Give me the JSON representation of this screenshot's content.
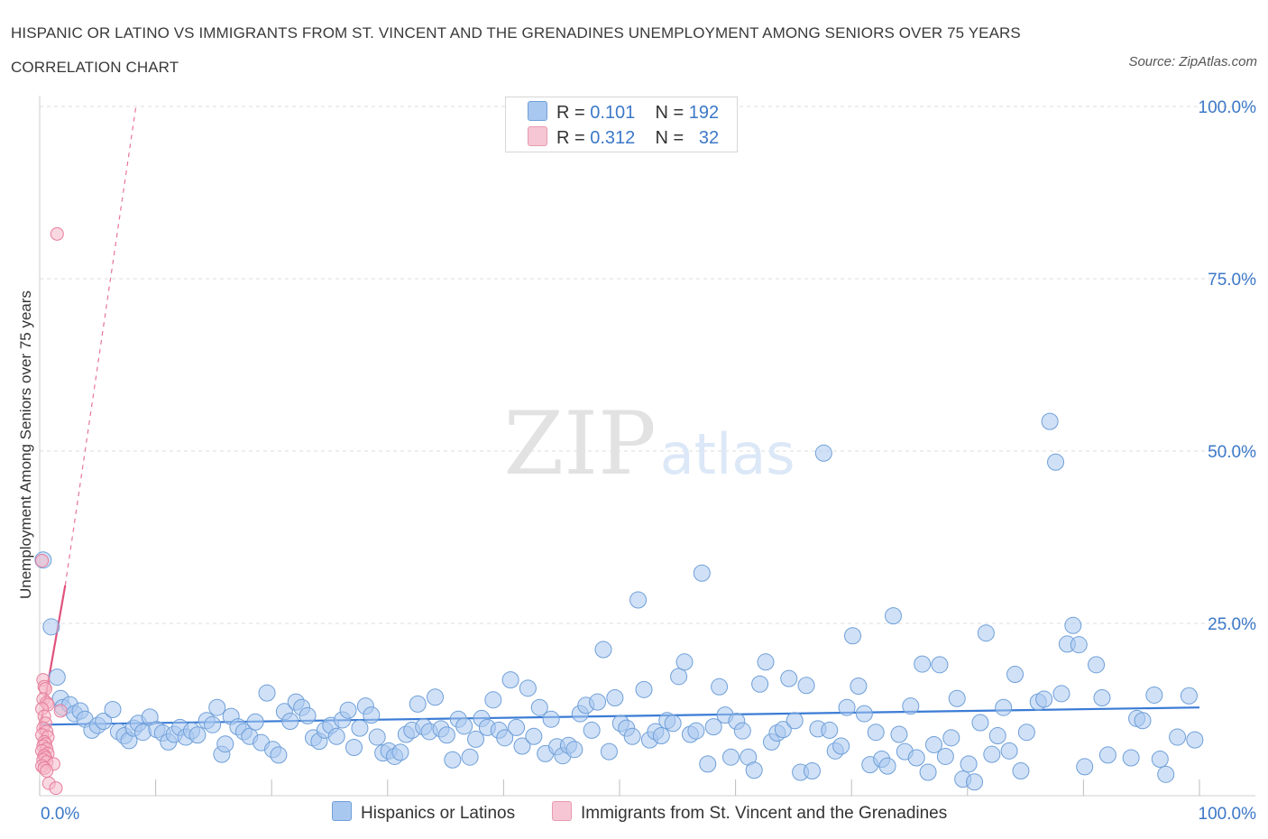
{
  "chart_data": {
    "type": "scatter",
    "title": "HISPANIC OR LATINO VS IMMIGRANTS FROM ST. VINCENT AND THE GRENADINES UNEMPLOYMENT AMONG SENIORS OVER 75 YEARS CORRELATION CHART",
    "source": "Source: ZipAtlas.com",
    "ylabel": "Unemployment Among Seniors over 75 years",
    "xlim": [
      0,
      100
    ],
    "ylim": [
      0,
      100
    ],
    "x_tick_labels": [
      "0.0%",
      "100.0%"
    ],
    "y_tick_labels": [
      "25.0%",
      "50.0%",
      "75.0%",
      "100.0%"
    ],
    "y_ticks": [
      25,
      50,
      75,
      100
    ],
    "grid": "horizontal dashed",
    "watermark": "ZIPatlas",
    "stats": [
      {
        "r_label": "R =",
        "r": "0.101",
        "n_label": "N =",
        "n": "192",
        "color": "#a9c8f0"
      },
      {
        "r_label": "R =",
        "r": "0.312",
        "n_label": "N =",
        "n": "32",
        "color": "#f6b8c8"
      }
    ],
    "series": [
      {
        "name": "Hispanics or Latinos",
        "color": "#a9c8f0",
        "stroke": "#6f9fd8",
        "trend": {
          "x": [
            0,
            100
          ],
          "y": [
            10.3,
            12.8
          ],
          "color": "#3a7bd5"
        },
        "points": [
          [
            0.3,
            34.2
          ],
          [
            1.0,
            24.5
          ],
          [
            1.5,
            17.2
          ],
          [
            1.8,
            14.1
          ],
          [
            2.0,
            12.8
          ],
          [
            2.6,
            13.2
          ],
          [
            3.0,
            11.9
          ],
          [
            3.5,
            12.3
          ],
          [
            3.9,
            11.1
          ],
          [
            4.5,
            9.5
          ],
          [
            5.0,
            10.2
          ],
          [
            5.5,
            10.8
          ],
          [
            6.3,
            12.5
          ],
          [
            6.8,
            9.3
          ],
          [
            7.3,
            8.7
          ],
          [
            7.7,
            8.0
          ],
          [
            8.1,
            9.8
          ],
          [
            8.5,
            10.5
          ],
          [
            8.9,
            9.2
          ],
          [
            9.5,
            11.4
          ],
          [
            10.1,
            9.6
          ],
          [
            10.6,
            9.1
          ],
          [
            11.1,
            7.8
          ],
          [
            11.6,
            8.9
          ],
          [
            12.1,
            9.9
          ],
          [
            12.6,
            8.5
          ],
          [
            13.1,
            9.4
          ],
          [
            13.6,
            8.8
          ],
          [
            14.4,
            10.9
          ],
          [
            14.9,
            10.3
          ],
          [
            15.3,
            12.8
          ],
          [
            15.7,
            6.0
          ],
          [
            16.0,
            7.5
          ],
          [
            16.5,
            11.5
          ],
          [
            17.1,
            10.0
          ],
          [
            17.6,
            9.3
          ],
          [
            18.1,
            8.6
          ],
          [
            18.6,
            10.7
          ],
          [
            19.1,
            7.7
          ],
          [
            19.6,
            14.9
          ],
          [
            20.1,
            6.7
          ],
          [
            20.6,
            5.9
          ],
          [
            21.1,
            12.2
          ],
          [
            21.6,
            10.8
          ],
          [
            22.1,
            13.6
          ],
          [
            22.6,
            12.8
          ],
          [
            23.1,
            11.6
          ],
          [
            23.6,
            8.4
          ],
          [
            24.1,
            7.9
          ],
          [
            24.6,
            9.5
          ],
          [
            25.1,
            10.2
          ],
          [
            25.6,
            8.6
          ],
          [
            26.1,
            11.0
          ],
          [
            26.6,
            12.4
          ],
          [
            27.1,
            7.0
          ],
          [
            27.6,
            9.8
          ],
          [
            28.1,
            13.0
          ],
          [
            28.6,
            11.7
          ],
          [
            29.1,
            8.5
          ],
          [
            29.6,
            6.2
          ],
          [
            30.1,
            6.5
          ],
          [
            30.6,
            5.7
          ],
          [
            31.1,
            6.3
          ],
          [
            31.6,
            8.9
          ],
          [
            32.1,
            9.5
          ],
          [
            32.6,
            13.3
          ],
          [
            33.1,
            10.0
          ],
          [
            33.6,
            9.3
          ],
          [
            34.1,
            14.3
          ],
          [
            34.6,
            9.7
          ],
          [
            35.1,
            8.8
          ],
          [
            35.6,
            5.2
          ],
          [
            36.1,
            11.1
          ],
          [
            36.6,
            10.1
          ],
          [
            37.1,
            5.6
          ],
          [
            37.6,
            8.2
          ],
          [
            38.1,
            11.2
          ],
          [
            38.6,
            9.9
          ],
          [
            39.1,
            13.9
          ],
          [
            39.6,
            9.5
          ],
          [
            40.1,
            8.4
          ],
          [
            40.6,
            16.8
          ],
          [
            41.1,
            9.9
          ],
          [
            41.6,
            7.2
          ],
          [
            42.1,
            15.6
          ],
          [
            42.6,
            8.6
          ],
          [
            43.1,
            12.8
          ],
          [
            43.6,
            6.1
          ],
          [
            44.1,
            11.1
          ],
          [
            44.6,
            7.1
          ],
          [
            45.1,
            5.8
          ],
          [
            45.6,
            7.3
          ],
          [
            46.1,
            6.7
          ],
          [
            46.6,
            11.9
          ],
          [
            47.1,
            13.1
          ],
          [
            47.6,
            9.5
          ],
          [
            48.1,
            13.6
          ],
          [
            48.6,
            21.2
          ],
          [
            49.1,
            6.4
          ],
          [
            49.6,
            14.2
          ],
          [
            50.1,
            10.5
          ],
          [
            50.6,
            9.8
          ],
          [
            51.1,
            8.6
          ],
          [
            51.6,
            28.4
          ],
          [
            52.1,
            15.4
          ],
          [
            52.6,
            8.1
          ],
          [
            53.1,
            9.3
          ],
          [
            53.6,
            8.7
          ],
          [
            54.1,
            10.9
          ],
          [
            54.6,
            10.5
          ],
          [
            55.1,
            17.3
          ],
          [
            55.6,
            19.4
          ],
          [
            56.1,
            8.9
          ],
          [
            56.6,
            9.4
          ],
          [
            57.1,
            32.3
          ],
          [
            57.6,
            4.6
          ],
          [
            58.1,
            10.0
          ],
          [
            58.6,
            15.8
          ],
          [
            59.1,
            11.7
          ],
          [
            59.6,
            5.6
          ],
          [
            60.1,
            10.8
          ],
          [
            60.6,
            9.4
          ],
          [
            61.1,
            5.6
          ],
          [
            61.6,
            3.7
          ],
          [
            62.1,
            16.2
          ],
          [
            62.6,
            19.4
          ],
          [
            63.1,
            7.8
          ],
          [
            63.6,
            9.1
          ],
          [
            64.1,
            9.6
          ],
          [
            64.6,
            17.0
          ],
          [
            65.1,
            10.9
          ],
          [
            65.6,
            3.4
          ],
          [
            66.1,
            16.0
          ],
          [
            66.6,
            3.6
          ],
          [
            67.1,
            9.7
          ],
          [
            67.6,
            49.7
          ],
          [
            68.1,
            9.5
          ],
          [
            68.6,
            6.5
          ],
          [
            69.1,
            7.2
          ],
          [
            69.6,
            12.8
          ],
          [
            70.1,
            23.2
          ],
          [
            70.6,
            15.9
          ],
          [
            71.1,
            11.9
          ],
          [
            71.6,
            4.5
          ],
          [
            72.1,
            9.2
          ],
          [
            72.6,
            5.3
          ],
          [
            73.1,
            4.3
          ],
          [
            73.6,
            26.1
          ],
          [
            74.1,
            8.9
          ],
          [
            74.6,
            6.4
          ],
          [
            75.1,
            13.0
          ],
          [
            75.6,
            5.5
          ],
          [
            76.1,
            19.1
          ],
          [
            76.6,
            3.4
          ],
          [
            77.1,
            7.4
          ],
          [
            77.6,
            19.0
          ],
          [
            78.1,
            5.7
          ],
          [
            78.6,
            8.4
          ],
          [
            79.1,
            14.1
          ],
          [
            79.6,
            2.4
          ],
          [
            80.1,
            4.6
          ],
          [
            80.6,
            2.0
          ],
          [
            81.1,
            10.6
          ],
          [
            81.6,
            23.6
          ],
          [
            82.1,
            6.0
          ],
          [
            82.6,
            8.7
          ],
          [
            83.1,
            12.8
          ],
          [
            83.6,
            6.5
          ],
          [
            84.1,
            17.6
          ],
          [
            84.6,
            3.6
          ],
          [
            85.1,
            9.2
          ],
          [
            86.1,
            13.6
          ],
          [
            86.6,
            14.0
          ],
          [
            87.1,
            54.3
          ],
          [
            87.6,
            48.4
          ],
          [
            88.1,
            14.8
          ],
          [
            88.6,
            22.0
          ],
          [
            89.1,
            24.7
          ],
          [
            89.6,
            21.9
          ],
          [
            90.1,
            4.2
          ],
          [
            91.1,
            19.0
          ],
          [
            91.6,
            14.2
          ],
          [
            92.1,
            5.9
          ],
          [
            94.1,
            5.5
          ],
          [
            94.6,
            11.2
          ],
          [
            95.1,
            10.9
          ],
          [
            96.1,
            14.6
          ],
          [
            96.6,
            5.3
          ],
          [
            97.1,
            3.1
          ],
          [
            98.1,
            8.5
          ],
          [
            99.1,
            14.5
          ],
          [
            99.6,
            8.1
          ]
        ]
      },
      {
        "name": "Immigrants from St. Vincent and the Grenadines",
        "color": "#f6b8c8",
        "stroke": "#e67e9c",
        "trend": {
          "x": [
            0,
            2.2
          ],
          "y": [
            9.5,
            30.5
          ],
          "color": "#e0527c",
          "extension": {
            "x": [
              2.2,
              8.3
            ],
            "y": [
              30.5,
              100
            ]
          }
        },
        "points": [
          [
            1.5,
            81.5
          ],
          [
            0.2,
            34.1
          ],
          [
            0.3,
            16.8
          ],
          [
            0.4,
            15.8
          ],
          [
            0.5,
            15.5
          ],
          [
            0.3,
            14.0
          ],
          [
            0.6,
            13.5
          ],
          [
            0.7,
            13.2
          ],
          [
            0.2,
            12.6
          ],
          [
            1.8,
            12.3
          ],
          [
            0.4,
            11.5
          ],
          [
            0.5,
            10.5
          ],
          [
            0.3,
            9.8
          ],
          [
            0.6,
            9.3
          ],
          [
            0.2,
            8.8
          ],
          [
            0.7,
            8.5
          ],
          [
            0.4,
            7.8
          ],
          [
            0.5,
            7.5
          ],
          [
            0.3,
            7.2
          ],
          [
            0.6,
            6.8
          ],
          [
            0.2,
            6.5
          ],
          [
            0.7,
            6.1
          ],
          [
            0.4,
            5.8
          ],
          [
            0.5,
            5.5
          ],
          [
            0.3,
            5.2
          ],
          [
            0.6,
            4.9
          ],
          [
            1.2,
            4.6
          ],
          [
            0.2,
            4.3
          ],
          [
            0.4,
            4.0
          ],
          [
            0.6,
            3.6
          ],
          [
            0.8,
            1.8
          ],
          [
            1.4,
            1.1
          ]
        ]
      }
    ]
  }
}
